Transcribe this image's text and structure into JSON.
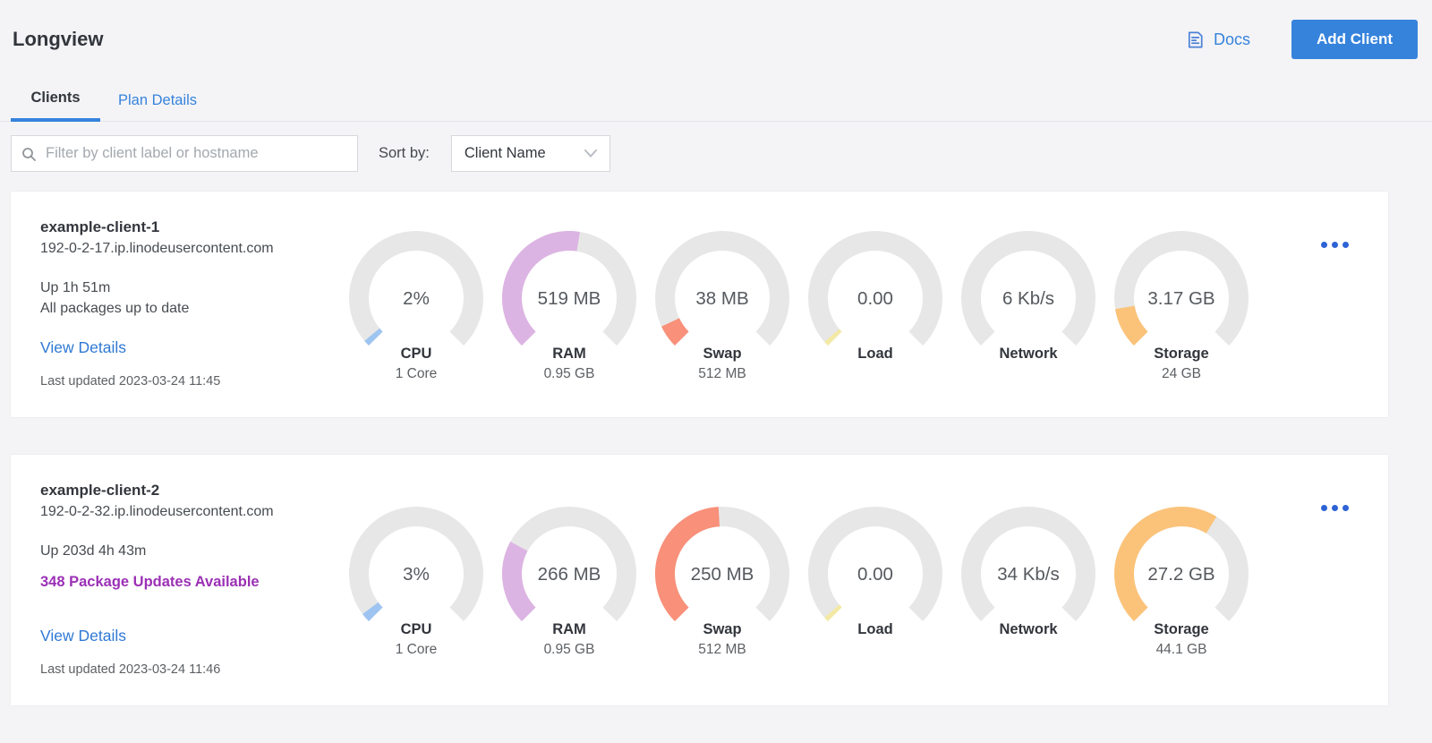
{
  "page_title": "Longview",
  "header": {
    "docs": "Docs",
    "add_client": "Add Client"
  },
  "tabs": {
    "clients": "Clients",
    "plan_details": "Plan Details"
  },
  "toolbar": {
    "filter_placeholder": "Filter by client label or hostname",
    "sort_by_label": "Sort by:",
    "sort_value": "Client Name"
  },
  "colors": {
    "accent_blue": "#3683dc",
    "link_blue": "#2f79d5",
    "package_updates_purple": "#9b30b5",
    "gauge_track": "#e7e7e7",
    "page_background": "#f4f4f6"
  },
  "clients": [
    {
      "name": "example-client-1",
      "hostname": "192-0-2-17.ip.linodeusercontent.com",
      "uptime": "Up 1h 51m",
      "packages_text": "All packages up to date",
      "packages_has_updates": false,
      "view_details": "View Details",
      "last_updated": "Last updated 2023-03-24 11:45",
      "gauges": [
        {
          "metric": "CPU",
          "value": "2%",
          "sublabel": "1 Core",
          "percent": 2,
          "color": "#9ec4f1"
        },
        {
          "metric": "RAM",
          "value": "519 MB",
          "sublabel": "0.95 GB",
          "percent": 53.4,
          "color": "#dcb4e3"
        },
        {
          "metric": "Swap",
          "value": "38 MB",
          "sublabel": "512 MB",
          "percent": 7.4,
          "color": "#f8907a"
        },
        {
          "metric": "Load",
          "value": "0.00",
          "sublabel": "",
          "percent": 1.6,
          "color": "#f3e9a4"
        },
        {
          "metric": "Network",
          "value": "6 Kb/s",
          "sublabel": "",
          "percent": 0,
          "color": "#9ed9a5"
        },
        {
          "metric": "Storage",
          "value": "3.17 GB",
          "sublabel": "24 GB",
          "percent": 13.2,
          "color": "#fbc37a"
        }
      ]
    },
    {
      "name": "example-client-2",
      "hostname": "192-0-2-32.ip.linodeusercontent.com",
      "uptime": "Up 203d 4h 43m",
      "packages_text": "348 Package Updates Available",
      "packages_has_updates": true,
      "view_details": "View Details",
      "last_updated": "Last updated 2023-03-24 11:46",
      "gauges": [
        {
          "metric": "CPU",
          "value": "3%",
          "sublabel": "1 Core",
          "percent": 3,
          "color": "#9ec4f1"
        },
        {
          "metric": "RAM",
          "value": "266 MB",
          "sublabel": "0.95 GB",
          "percent": 27.3,
          "color": "#dcb4e3"
        },
        {
          "metric": "Swap",
          "value": "250 MB",
          "sublabel": "512 MB",
          "percent": 48.8,
          "color": "#f8907a"
        },
        {
          "metric": "Load",
          "value": "0.00",
          "sublabel": "",
          "percent": 1.6,
          "color": "#f3e9a4"
        },
        {
          "metric": "Network",
          "value": "34 Kb/s",
          "sublabel": "",
          "percent": 0,
          "color": "#9ed9a5"
        },
        {
          "metric": "Storage",
          "value": "27.2 GB",
          "sublabel": "44.1 GB",
          "percent": 61.7,
          "color": "#fbc37a"
        }
      ]
    }
  ]
}
